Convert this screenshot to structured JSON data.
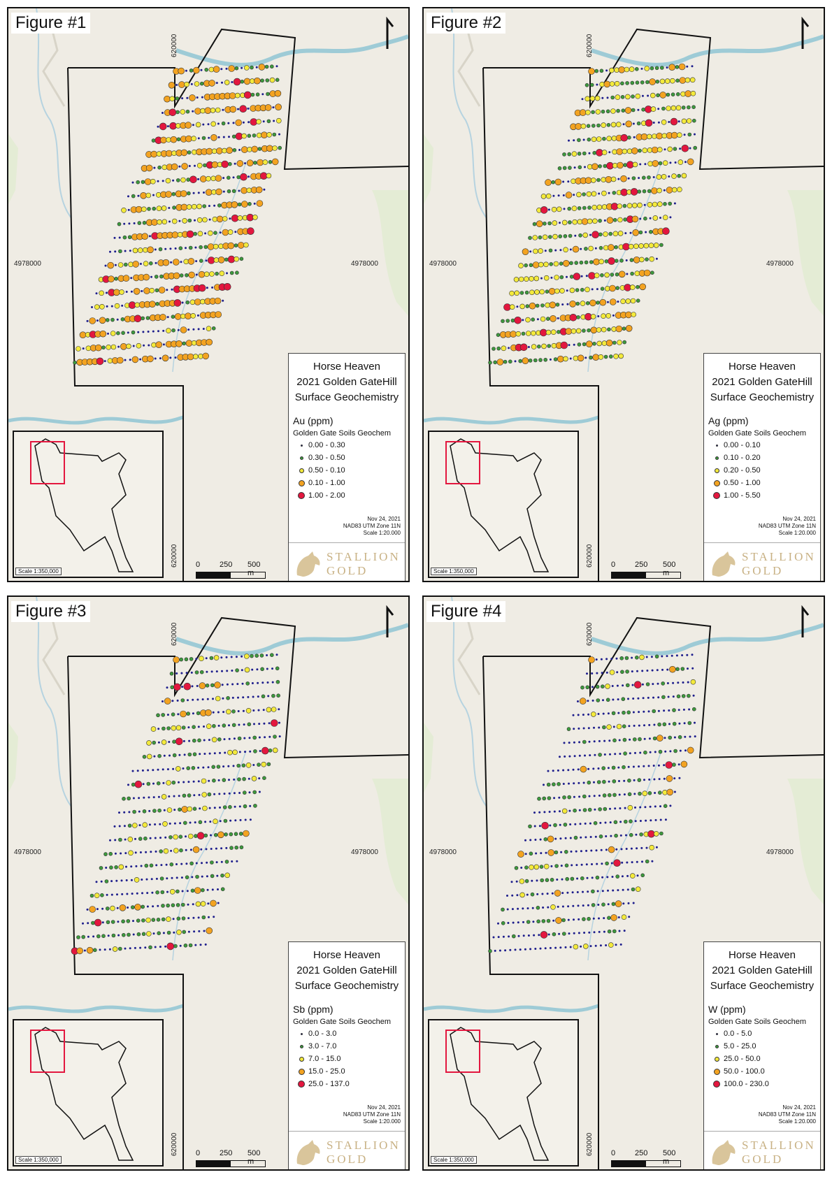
{
  "project": {
    "name": "Horse Heaven",
    "title_line2": "2021 Golden GateHill",
    "title_line3": "Surface Geochemistry"
  },
  "legend_subtitle": "Golden Gate Soils Geochem",
  "meta": {
    "date": "Nov 24, 2021",
    "datum": "NAD83 UTM Zone 11N",
    "scale": "Scale 1:20.000"
  },
  "coords": {
    "easting": "620000",
    "northing": "4978000"
  },
  "inset_scale": "Scale 1:350,000",
  "scale_bar": {
    "l0": "0",
    "l1": "250",
    "l2": "500 m"
  },
  "logo": {
    "line1": "STALLION",
    "line2": "GOLD"
  },
  "colors": {
    "class1": "#1e1e8c",
    "class2": "#3d9a3d",
    "class3": "#f4ea3c",
    "class4": "#f3a321",
    "class5": "#e3173f"
  },
  "figures": [
    {
      "label": "Figure #1",
      "element": "Au (ppm)",
      "classes": [
        "0.00 - 0.30",
        "0.30 - 0.50",
        "0.50 - 0.10",
        "0.10 - 1.00",
        "1.00 - 2.00"
      ]
    },
    {
      "label": "Figure #2",
      "element": "Ag (ppm)",
      "classes": [
        "0.00 - 0.10",
        "0.10 - 0.20",
        "0.20 - 0.50",
        "0.50 - 1.00",
        "1.00 - 5.50"
      ]
    },
    {
      "label": "Figure #3",
      "element": "Sb (ppm)",
      "classes": [
        "0.0 - 3.0",
        "3.0 - 7.0",
        "7.0 - 15.0",
        "15.0 - 25.0",
        "25.0 - 137.0"
      ]
    },
    {
      "label": "Figure #4",
      "element": "W (ppm)",
      "classes": [
        "0.0 - 5.0",
        "5.0 - 25.0",
        "25.0 - 50.0",
        "50.0 - 100.0",
        "100.0 - 230.0"
      ]
    }
  ]
}
